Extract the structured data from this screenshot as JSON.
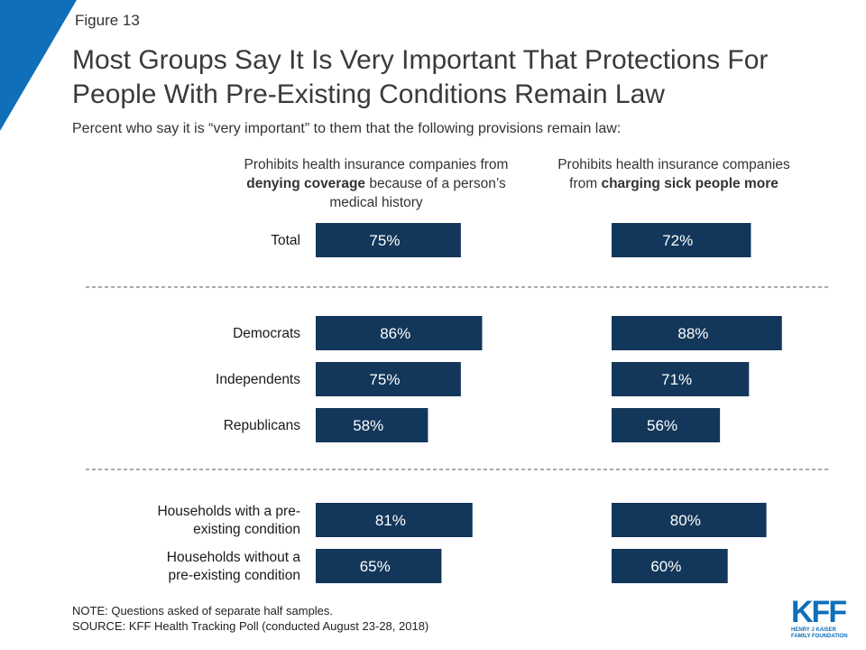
{
  "figure_label": "Figure 13",
  "title": "Most Groups Say It Is Very Important That Protections For People With Pre-Existing Conditions Remain Law",
  "subtitle": "Percent who say it is “very important” to them that the following provisions remain law:",
  "colors": {
    "bar": "#13375a",
    "accent": "#0f6fb8",
    "divider": "#555555"
  },
  "columns": [
    {
      "header_parts": [
        {
          "text": "Prohibits health insurance companies from ",
          "bold": false
        },
        {
          "text": "denying coverage",
          "bold": true
        },
        {
          "text": " because of a person’s medical history",
          "bold": false
        }
      ]
    },
    {
      "header_parts": [
        {
          "text": "Prohibits health insurance companies from ",
          "bold": false
        },
        {
          "text": "charging sick people more",
          "bold": true
        }
      ]
    }
  ],
  "chart_data": {
    "type": "bar",
    "orientation": "horizontal",
    "unit": "%",
    "groups": [
      [
        "Total"
      ],
      [
        "Democrats",
        "Independents",
        "Republicans"
      ],
      [
        "Households with a pre-existing condition",
        "Households without a pre-existing condition"
      ]
    ],
    "categories": [
      "Total",
      "Democrats",
      "Independents",
      "Republicans",
      "Households with a pre-existing condition",
      "Households without a pre-existing condition"
    ],
    "category_labels": [
      [
        "Total"
      ],
      [
        "Democrats"
      ],
      [
        "Independents"
      ],
      [
        "Republicans"
      ],
      [
        "Households with a pre-",
        "existing condition"
      ],
      [
        "Households without a",
        "pre-existing condition"
      ]
    ],
    "series": [
      {
        "values": [
          75,
          86,
          75,
          58,
          81,
          65
        ]
      },
      {
        "values": [
          72,
          88,
          71,
          56,
          80,
          60
        ]
      }
    ],
    "data_labels": [
      [
        "75%",
        "86%",
        "75%",
        "58%",
        "81%",
        "65%"
      ],
      [
        "72%",
        "88%",
        "71%",
        "56%",
        "80%",
        "60%"
      ]
    ]
  },
  "notes": [
    "NOTE: Questions asked of separate half samples.",
    "SOURCE: KFF Health Tracking Poll (conducted August 23-28, 2018)"
  ],
  "logo": {
    "mark": "KFF",
    "sub_lines": [
      "HENRY J KAISER",
      "FAMILY FOUNDATION"
    ]
  }
}
